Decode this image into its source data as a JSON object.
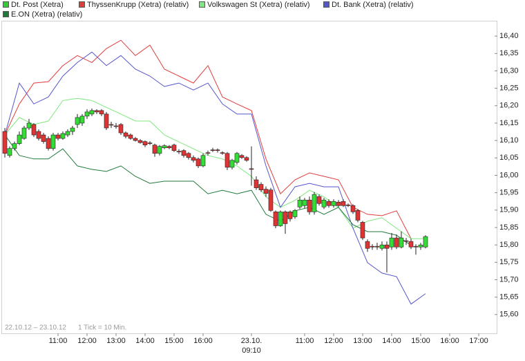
{
  "chart_data": {
    "type": "candlestick",
    "xlim": [
      -0.57,
      101.86
    ],
    "ylim": [
      15.546,
      16.444
    ],
    "yticks": [
      {
        "value": 16.4,
        "label": "16,40"
      },
      {
        "value": 16.35,
        "label": "16,35"
      },
      {
        "value": 16.3,
        "label": "16,30"
      },
      {
        "value": 16.25,
        "label": "16,25"
      },
      {
        "value": 16.2,
        "label": "16,20"
      },
      {
        "value": 16.15,
        "label": "16,15"
      },
      {
        "value": 16.1,
        "label": "16,10"
      },
      {
        "value": 16.05,
        "label": "16,05"
      },
      {
        "value": 16.0,
        "label": "16,00"
      },
      {
        "value": 15.95,
        "label": "15,95"
      },
      {
        "value": 15.9,
        "label": "15,90"
      },
      {
        "value": 15.85,
        "label": "15,85"
      },
      {
        "value": 15.8,
        "label": "15,80"
      },
      {
        "value": 15.75,
        "label": "15,75"
      },
      {
        "value": 15.7,
        "label": "15,70"
      },
      {
        "value": 15.65,
        "label": "15,65"
      },
      {
        "value": 15.6,
        "label": "15,60"
      }
    ],
    "xticks": [
      {
        "value": 11,
        "label": "11:00"
      },
      {
        "value": 17,
        "label": "12:00"
      },
      {
        "value": 23,
        "label": "13:00"
      },
      {
        "value": 29,
        "label": "14:00"
      },
      {
        "value": 35,
        "label": "15:00"
      },
      {
        "value": 41,
        "label": "16:00"
      },
      {
        "value": 51,
        "label": "23.10.",
        "label2": "09:10"
      },
      {
        "value": 62,
        "label": "11:00"
      },
      {
        "value": 68,
        "label": "12:00"
      },
      {
        "value": 74,
        "label": "13:00"
      },
      {
        "value": 80,
        "label": "14:00"
      },
      {
        "value": 86,
        "label": "15:00"
      },
      {
        "value": 92,
        "label": "16:00"
      },
      {
        "value": 98,
        "label": "17:00"
      }
    ],
    "date_range": "22.10.12 – 23.10.12",
    "tick_note": "1 Tick = 10 Min.",
    "series": [
      {
        "name": "Dt. Post (Xetra)",
        "type": "candlestick",
        "color": "#33cc33",
        "color_up": "#33dd33",
        "color_down": "#e03333",
        "open": [
          16.126,
          16.057,
          16.077,
          16.091,
          16.106,
          16.136,
          16.146,
          16.126,
          16.116,
          16.106,
          16.077,
          16.116,
          16.106,
          16.116,
          16.126,
          16.146,
          16.15,
          16.17,
          16.176,
          16.186,
          16.186,
          16.176,
          16.146,
          16.142,
          16.146,
          16.122,
          16.116,
          16.106,
          16.1,
          16.097,
          16.093,
          16.087,
          16.063,
          16.079,
          16.083,
          16.087,
          16.069,
          16.071,
          16.063,
          16.051,
          16.047,
          16.027,
          16.065,
          16.073,
          16.073,
          16.065,
          16.063,
          16.023,
          16.037,
          16.057,
          16.051,
          16.019,
          15.987,
          15.974,
          15.96,
          15.958,
          15.895,
          15.855,
          15.895,
          15.895,
          15.881,
          15.909,
          15.913,
          15.929,
          15.895,
          15.939,
          15.909,
          15.925,
          15.913,
          15.923,
          15.925,
          15.915,
          15.913,
          15.899,
          15.865,
          15.81,
          15.796,
          15.796,
          15.79,
          15.8,
          15.794,
          15.82,
          15.794,
          15.812,
          15.81,
          15.796,
          15.794,
          15.794
        ],
        "high": [
          16.136,
          16.083,
          16.097,
          16.126,
          16.142,
          16.162,
          16.15,
          16.132,
          16.122,
          16.112,
          16.122,
          16.122,
          16.126,
          16.132,
          16.142,
          16.176,
          16.176,
          16.19,
          16.192,
          16.19,
          16.19,
          16.182,
          16.154,
          16.15,
          16.15,
          16.126,
          16.12,
          16.11,
          16.104,
          16.1,
          16.098,
          16.091,
          16.087,
          16.089,
          16.087,
          16.091,
          16.075,
          16.075,
          16.067,
          16.057,
          16.051,
          16.063,
          16.071,
          16.079,
          16.077,
          16.069,
          16.067,
          16.047,
          16.067,
          16.061,
          16.055,
          16.083,
          15.997,
          15.98,
          15.968,
          15.964,
          15.899,
          15.899,
          15.899,
          15.899,
          15.903,
          15.939,
          15.935,
          15.939,
          15.952,
          15.945,
          15.935,
          15.931,
          15.931,
          15.929,
          15.931,
          15.919,
          15.917,
          15.903,
          15.869,
          15.816,
          15.802,
          15.806,
          15.81,
          15.81,
          15.834,
          15.83,
          15.839,
          15.82,
          15.818,
          15.802,
          15.806,
          15.828
        ],
        "low": [
          16.051,
          16.051,
          16.071,
          16.087,
          16.102,
          16.13,
          16.11,
          16.1,
          16.091,
          16.071,
          16.071,
          16.1,
          16.102,
          16.11,
          16.116,
          16.136,
          16.142,
          16.162,
          16.17,
          16.176,
          16.17,
          16.13,
          16.136,
          16.134,
          16.116,
          16.106,
          16.102,
          16.097,
          16.091,
          16.081,
          16.087,
          16.053,
          16.057,
          16.075,
          16.075,
          16.067,
          16.061,
          16.051,
          16.045,
          16.037,
          16.021,
          16.023,
          16.057,
          16.067,
          16.065,
          16.059,
          16.015,
          16.017,
          16.031,
          16.047,
          16.039,
          15.97,
          15.958,
          15.952,
          15.938,
          15.895,
          15.848,
          15.852,
          15.832,
          15.867,
          15.875,
          15.903,
          15.905,
          15.887,
          15.887,
          15.913,
          15.903,
          15.907,
          15.907,
          15.909,
          15.909,
          15.909,
          15.889,
          15.865,
          15.814,
          15.78,
          15.786,
          15.786,
          15.784,
          15.721,
          15.786,
          15.788,
          15.79,
          15.8,
          15.788,
          15.772,
          15.786,
          15.79
        ],
        "close": [
          16.063,
          16.077,
          16.091,
          16.116,
          16.136,
          16.15,
          16.116,
          16.106,
          16.097,
          16.077,
          16.116,
          16.106,
          16.12,
          16.126,
          16.136,
          16.166,
          16.17,
          16.182,
          16.186,
          16.182,
          16.176,
          16.136,
          16.144,
          16.14,
          16.122,
          16.112,
          16.106,
          16.1,
          16.094,
          16.087,
          16.091,
          16.063,
          16.083,
          16.085,
          16.079,
          16.071,
          16.067,
          16.057,
          16.051,
          16.043,
          16.027,
          16.057,
          16.063,
          16.071,
          16.071,
          16.063,
          16.023,
          16.043,
          16.063,
          16.051,
          16.043,
          16.017,
          15.964,
          15.958,
          15.948,
          15.899,
          15.855,
          15.895,
          15.861,
          15.875,
          15.899,
          15.929,
          15.929,
          15.895,
          15.945,
          15.919,
          15.929,
          15.913,
          15.925,
          15.913,
          15.913,
          15.913,
          15.895,
          15.871,
          15.82,
          15.79,
          15.794,
          15.794,
          15.8,
          15.79,
          15.82,
          15.794,
          15.82,
          15.81,
          15.794,
          15.794,
          15.8,
          15.824
        ]
      },
      {
        "name": "ThyssenKrupp (Xetra) (relativ)",
        "type": "line",
        "color": "#e03c3c",
        "x": [
          0,
          3,
          6,
          9,
          12,
          15,
          18,
          21,
          24,
          27,
          30,
          33,
          36,
          39,
          42,
          45,
          48,
          51,
          54,
          57,
          60,
          63,
          66,
          69,
          72,
          75,
          78,
          81,
          84,
          87
        ],
        "values": [
          16.116,
          16.205,
          16.265,
          16.269,
          16.315,
          16.344,
          16.324,
          16.364,
          16.388,
          16.344,
          16.374,
          16.305,
          16.285,
          16.265,
          16.315,
          16.225,
          16.205,
          16.186,
          16.047,
          15.947,
          15.987,
          16.007,
          15.997,
          15.987,
          15.908,
          15.888,
          15.884,
          15.898,
          15.818,
          null
        ]
      },
      {
        "name": "Volkswagen St (Xetra) (relativ)",
        "type": "line",
        "color": "#7de87d",
        "x": [
          0,
          3,
          6,
          9,
          12,
          15,
          18,
          21,
          24,
          27,
          30,
          33,
          36,
          39,
          42,
          45,
          48,
          51,
          54,
          57,
          60,
          63,
          66,
          69,
          72,
          75,
          78,
          81,
          84,
          87
        ],
        "values": [
          16.116,
          16.166,
          16.146,
          16.156,
          16.215,
          16.221,
          16.215,
          16.195,
          16.176,
          16.156,
          16.156,
          16.116,
          16.096,
          16.076,
          16.057,
          16.047,
          16.027,
          15.997,
          15.938,
          15.908,
          15.928,
          15.957,
          15.938,
          15.908,
          15.848,
          15.868,
          15.878,
          15.848,
          15.818,
          15.818
        ]
      },
      {
        "name": "Dt. Bank (Xetra) (relativ)",
        "type": "line",
        "color": "#5555cc",
        "x": [
          0,
          3,
          6,
          9,
          12,
          15,
          18,
          21,
          24,
          27,
          30,
          33,
          36,
          39,
          42,
          45,
          48,
          51,
          54,
          57,
          60,
          63,
          66,
          69,
          72,
          75,
          78,
          81,
          84,
          87
        ],
        "values": [
          16.116,
          16.265,
          16.205,
          16.225,
          16.285,
          16.324,
          16.354,
          16.315,
          16.344,
          16.305,
          16.285,
          16.255,
          16.265,
          16.245,
          16.265,
          16.205,
          16.176,
          16.176,
          16.027,
          15.908,
          15.967,
          15.977,
          15.967,
          15.967,
          15.848,
          15.749,
          15.719,
          15.709,
          15.63,
          15.66
        ]
      },
      {
        "name": "E.ON (Xetra) (relativ)",
        "type": "line",
        "color": "#1f7a3a",
        "x": [
          0,
          3,
          6,
          9,
          12,
          15,
          18,
          21,
          24,
          27,
          30,
          33,
          36,
          39,
          42,
          45,
          48,
          51,
          54,
          57,
          60,
          63,
          66,
          69,
          72,
          75,
          78,
          81,
          84,
          87
        ],
        "values": [
          16.116,
          16.057,
          16.047,
          16.047,
          16.076,
          16.027,
          16.017,
          16.011,
          16.027,
          15.997,
          15.977,
          15.983,
          15.983,
          15.983,
          15.947,
          15.957,
          15.947,
          15.957,
          15.888,
          15.868,
          15.898,
          15.908,
          15.888,
          15.908,
          15.858,
          15.838,
          15.838,
          15.828,
          15.799,
          null
        ]
      }
    ]
  }
}
